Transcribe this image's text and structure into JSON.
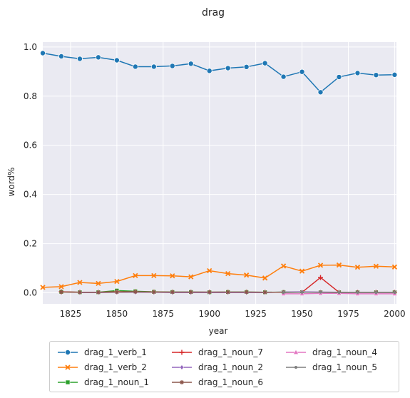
{
  "chart_data": {
    "type": "line",
    "title": "drag",
    "xlabel": "year",
    "ylabel": "word%",
    "xlim": [
      1810,
      2001
    ],
    "ylim": [
      -0.045,
      1.02
    ],
    "xticks": [
      1825,
      1850,
      1875,
      1900,
      1925,
      1950,
      1975,
      2000
    ],
    "yticks": [
      0.0,
      0.2,
      0.4,
      0.6,
      0.8,
      1.0
    ],
    "grid": true,
    "legend_position": "bottom",
    "series": [
      {
        "name": "drag_1_verb_1",
        "color": "#1f77b4",
        "marker": "circle",
        "x": [
          1810,
          1820,
          1830,
          1840,
          1850,
          1860,
          1870,
          1880,
          1890,
          1900,
          1910,
          1920,
          1930,
          1940,
          1950,
          1960,
          1970,
          1980,
          1990,
          2000
        ],
        "y": [
          0.975,
          0.962,
          0.952,
          0.958,
          0.946,
          0.92,
          0.92,
          0.923,
          0.932,
          0.903,
          0.914,
          0.919,
          0.934,
          0.879,
          0.899,
          0.816,
          0.878,
          0.894,
          0.886,
          0.887
        ]
      },
      {
        "name": "drag_1_verb_2",
        "color": "#ff7f0e",
        "marker": "x",
        "x": [
          1810,
          1820,
          1830,
          1840,
          1850,
          1860,
          1870,
          1880,
          1890,
          1900,
          1910,
          1920,
          1930,
          1940,
          1950,
          1960,
          1970,
          1980,
          1990,
          2000
        ],
        "y": [
          0.022,
          0.025,
          0.042,
          0.038,
          0.046,
          0.07,
          0.07,
          0.069,
          0.065,
          0.09,
          0.078,
          0.072,
          0.06,
          0.109,
          0.088,
          0.112,
          0.113,
          0.104,
          0.108,
          0.105
        ]
      },
      {
        "name": "drag_1_noun_1",
        "color": "#2ca02c",
        "marker": "square",
        "x": [
          1820,
          1830,
          1840,
          1850,
          1860,
          1870,
          1880,
          1890,
          1900,
          1910,
          1920,
          1930,
          1940,
          1950,
          1960,
          1970,
          1980,
          1990,
          2000
        ],
        "y": [
          0.004,
          0.002,
          0.002,
          0.009,
          0.006,
          0.004,
          0.003,
          0.003,
          0.002,
          0.003,
          0.003,
          0.002,
          0.003,
          0.002,
          0.002,
          0.002,
          0.002,
          0.002,
          0.002
        ]
      },
      {
        "name": "drag_1_noun_7",
        "color": "#d62728",
        "marker": "plus",
        "x": [
          1820,
          1830,
          1840,
          1850,
          1860,
          1870,
          1880,
          1890,
          1900,
          1910,
          1920,
          1930,
          1940,
          1950,
          1960,
          1970,
          1980,
          1990,
          2000
        ],
        "y": [
          0.004,
          0.002,
          0.002,
          0.004,
          0.004,
          0.003,
          0.002,
          0.002,
          0.002,
          0.002,
          0.002,
          0.002,
          0.002,
          0.002,
          0.062,
          0.002,
          0.002,
          0.002,
          0.002
        ]
      },
      {
        "name": "drag_1_noun_2",
        "color": "#9467bd",
        "marker": "diamond",
        "x": [
          1830,
          1840,
          1850,
          1860,
          1870,
          1880,
          1890,
          1900,
          1910,
          1920,
          1930,
          1940,
          1950,
          1960,
          1970,
          1980,
          1990,
          2000
        ],
        "y": [
          0.001,
          0.001,
          0.002,
          0.002,
          0.002,
          0.001,
          0.001,
          0.001,
          0.001,
          0.001,
          0.001,
          0.003,
          0.004,
          0.003,
          0.002,
          0.002,
          0.002,
          0.002
        ]
      },
      {
        "name": "drag_1_noun_6",
        "color": "#8c564b",
        "marker": "star",
        "x": [
          1820,
          1830,
          1840,
          1850,
          1860,
          1870,
          1880,
          1890,
          1900,
          1910,
          1920,
          1930,
          1940,
          1950,
          1960,
          1970,
          1980,
          1990,
          2000
        ],
        "y": [
          0.003,
          0.002,
          0.002,
          0.003,
          0.004,
          0.003,
          0.003,
          0.003,
          0.003,
          0.003,
          0.003,
          0.002,
          0.002,
          0.002,
          0.002,
          0.002,
          0.002,
          0.002,
          0.002
        ]
      },
      {
        "name": "drag_1_noun_4",
        "color": "#e377c2",
        "marker": "triangle",
        "x": [
          1940,
          1950,
          1960,
          1970,
          1980,
          1990,
          2000
        ],
        "y": [
          -0.004,
          -0.004,
          -0.002,
          -0.002,
          -0.004,
          -0.004,
          -0.004
        ]
      },
      {
        "name": "drag_1_noun_5",
        "color": "#7f7f7f",
        "marker": "point",
        "x": [
          1940,
          1950,
          1960,
          1970,
          1980,
          1990,
          2000
        ],
        "y": [
          0.001,
          0.002,
          0.002,
          0.001,
          0.001,
          0.001,
          0.001
        ]
      }
    ]
  }
}
